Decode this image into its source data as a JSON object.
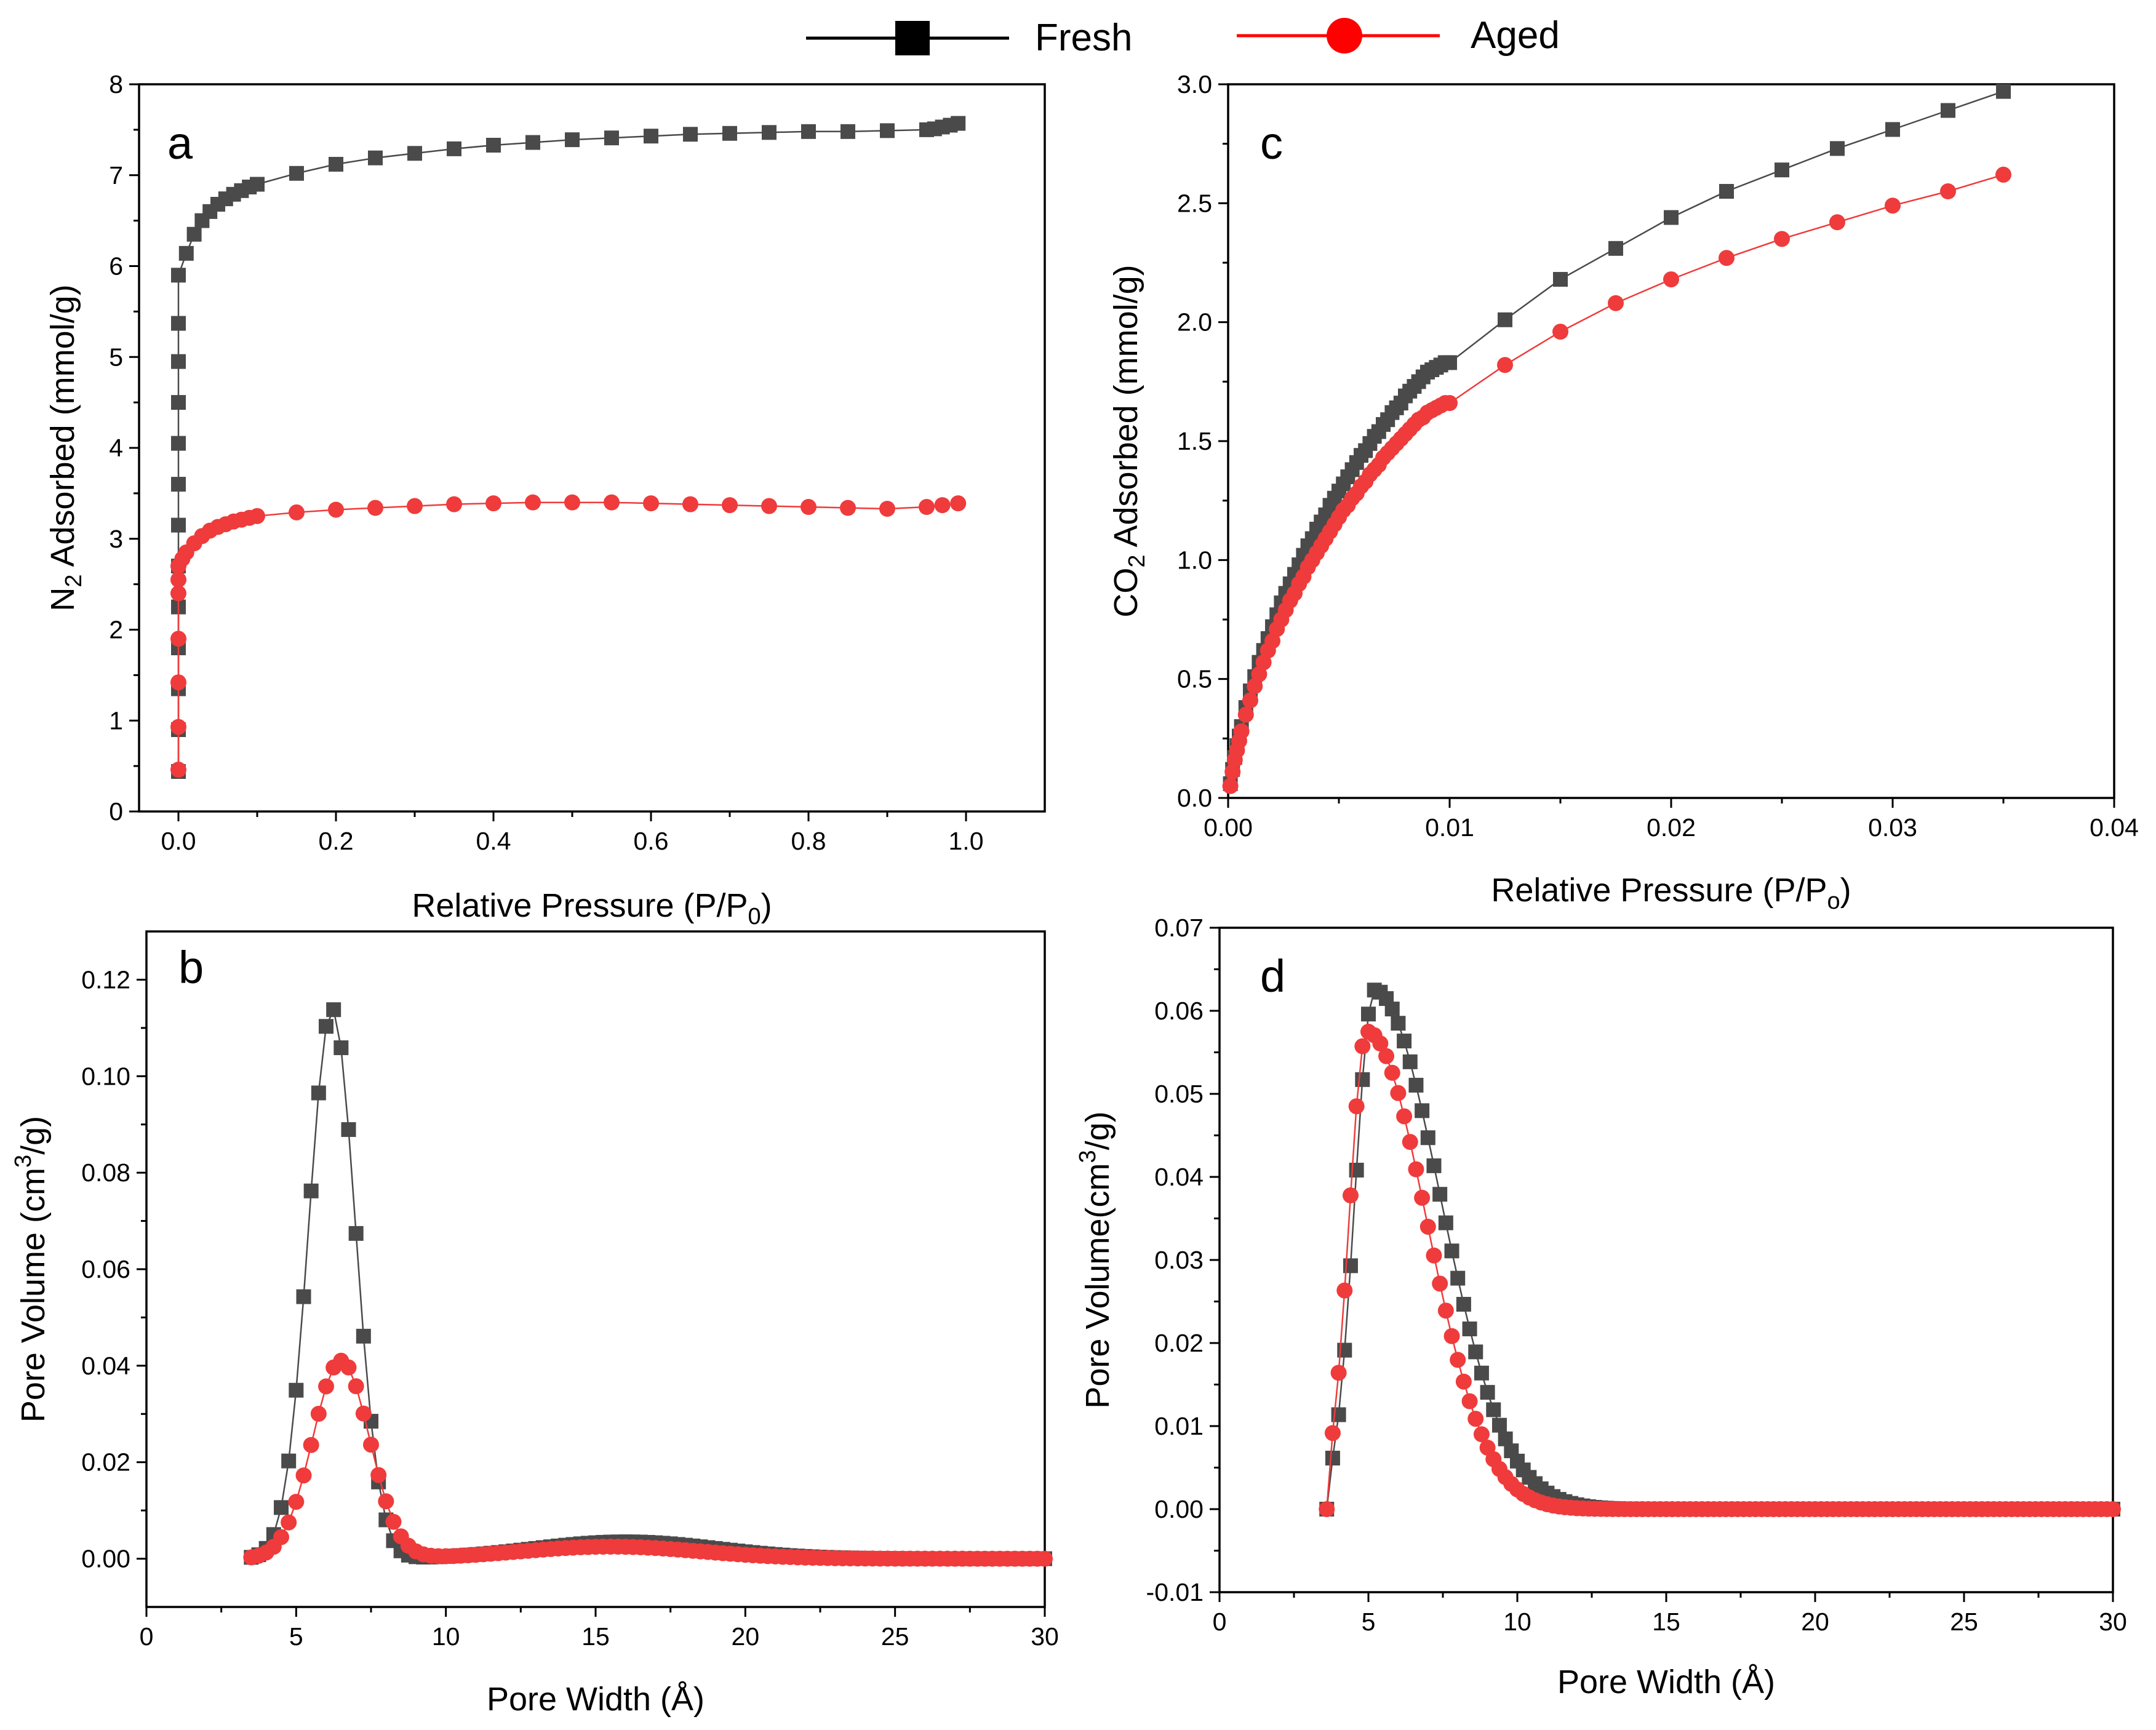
{
  "colors": {
    "fresh": "#4a4a4a",
    "aged": "#ef3b3b",
    "fresh_legend": "#000000",
    "aged_legend": "#ff0000"
  },
  "legend": {
    "fresh_label": "Fresh",
    "aged_label": "Aged"
  },
  "chart_data": [
    {
      "id": "a",
      "panel_label": "a",
      "type": "scatter",
      "xlabel": "Relative Pressure (P/P0)",
      "xlabel_main": "Relative Pressure (P/P",
      "xlabel_sub": "0",
      "xlabel_end": ")",
      "ylabel": "N2 Adsorbed (mmol/g)",
      "ylabel_pre": "N",
      "ylabel_sub": "2",
      "ylabel_post": " Adsorbed (mmol/g)",
      "xlim": [
        -0.05,
        1.1
      ],
      "ylim": [
        0,
        8
      ],
      "xticks": [
        0.0,
        0.2,
        0.4,
        0.6,
        0.8,
        1.0
      ],
      "xtick_labels": [
        "0.0",
        "0.2",
        "0.4",
        "0.6",
        "0.8",
        "1.0"
      ],
      "yticks": [
        0,
        1,
        2,
        3,
        4,
        5,
        6,
        7,
        8
      ],
      "ytick_labels": [
        "0",
        "1",
        "2",
        "3",
        "4",
        "5",
        "6",
        "7",
        "8"
      ],
      "series": [
        {
          "name": "Fresh",
          "marker": "square",
          "x": [
            0.0,
            0.0,
            0.0,
            0.0,
            0.0,
            0.0,
            0.0,
            0.0,
            0.0,
            0.0,
            0.0,
            0.0,
            0.0,
            0.01,
            0.02,
            0.03,
            0.04,
            0.05,
            0.06,
            0.07,
            0.08,
            0.09,
            0.1,
            0.15,
            0.2,
            0.25,
            0.3,
            0.35,
            0.4,
            0.45,
            0.5,
            0.55,
            0.6,
            0.65,
            0.7,
            0.75,
            0.8,
            0.85,
            0.9,
            0.95,
            0.96,
            0.97,
            0.98,
            0.99
          ],
          "y": [
            0.44,
            0.9,
            1.35,
            1.8,
            2.25,
            2.7,
            3.15,
            3.6,
            4.05,
            4.5,
            4.95,
            5.37,
            5.9,
            6.14,
            6.35,
            6.5,
            6.6,
            6.68,
            6.74,
            6.79,
            6.83,
            6.87,
            6.9,
            7.02,
            7.12,
            7.19,
            7.24,
            7.29,
            7.33,
            7.36,
            7.39,
            7.41,
            7.43,
            7.45,
            7.46,
            7.47,
            7.48,
            7.48,
            7.49,
            7.5,
            7.51,
            7.53,
            7.55,
            7.57
          ]
        },
        {
          "name": "Aged",
          "marker": "circle",
          "x": [
            0.0,
            0.0,
            0.0,
            0.0,
            0.0,
            0.0,
            0.0,
            0.005,
            0.01,
            0.02,
            0.03,
            0.04,
            0.05,
            0.06,
            0.07,
            0.08,
            0.09,
            0.1,
            0.15,
            0.2,
            0.25,
            0.3,
            0.35,
            0.4,
            0.45,
            0.5,
            0.55,
            0.6,
            0.65,
            0.7,
            0.75,
            0.8,
            0.85,
            0.9,
            0.95,
            0.97,
            0.99
          ],
          "y": [
            0.46,
            0.93,
            1.42,
            1.9,
            2.4,
            2.55,
            2.7,
            2.78,
            2.85,
            2.95,
            3.03,
            3.09,
            3.13,
            3.16,
            3.19,
            3.21,
            3.23,
            3.25,
            3.29,
            3.32,
            3.34,
            3.36,
            3.38,
            3.39,
            3.4,
            3.4,
            3.4,
            3.39,
            3.38,
            3.37,
            3.36,
            3.35,
            3.34,
            3.33,
            3.35,
            3.37,
            3.39
          ]
        }
      ]
    },
    {
      "id": "b",
      "panel_label": "b",
      "type": "scatter",
      "xlabel": "Pore Width (Å)",
      "xlabel_main": "Pore Width (Å)",
      "ylabel": "Pore Volume (cm3/g)",
      "ylabel_pre": "Pore Volume (cm",
      "ylabel_sup": "3",
      "ylabel_post": "/g)",
      "xlim": [
        0,
        30
      ],
      "ylim": [
        -0.01,
        0.13
      ],
      "xticks": [
        0,
        5,
        10,
        15,
        20,
        25,
        30
      ],
      "xtick_labels": [
        "0",
        "5",
        "10",
        "15",
        "20",
        "25",
        "30"
      ],
      "yticks": [
        0.0,
        0.02,
        0.04,
        0.06,
        0.08,
        0.1,
        0.12
      ],
      "ytick_labels": [
        "0.00",
        "0.02",
        "0.04",
        "0.06",
        "0.08",
        "0.10",
        "0.12"
      ],
      "series": [
        {
          "name": "Fresh",
          "marker": "square",
          "peaks": [
            {
              "center": 6.2,
              "height": 0.114,
              "sigma": 0.78
            },
            {
              "center": 16.0,
              "height": 0.0035,
              "sigma": 3.0
            }
          ],
          "x_start": 3.5,
          "x_end": 30,
          "x_step": 0.25
        },
        {
          "name": "Aged",
          "marker": "circle",
          "peaks": [
            {
              "center": 6.5,
              "height": 0.041,
              "sigma": 0.95
            },
            {
              "center": 15.5,
              "height": 0.0025,
              "sigma": 3.0
            }
          ],
          "x_start": 3.5,
          "x_end": 30,
          "x_step": 0.25
        }
      ]
    },
    {
      "id": "c",
      "panel_label": "c",
      "type": "scatter",
      "xlabel": "Relative Pressure (P/Po)",
      "xlabel_main": "Relative Pressure (P/P",
      "xlabel_sub": "o",
      "xlabel_end": ")",
      "ylabel": "CO2 Adsorbed (mmol/g)",
      "ylabel_pre": "CO",
      "ylabel_sub": "2",
      "ylabel_post": " Adsorbed (mmol/g)",
      "xlim": [
        0,
        0.04
      ],
      "ylim": [
        0,
        3.0
      ],
      "xticks": [
        0.0,
        0.01,
        0.02,
        0.03,
        0.04
      ],
      "xtick_labels": [
        "0.00",
        "0.01",
        "0.02",
        "0.03",
        "0.04"
      ],
      "yticks": [
        0.0,
        0.5,
        1.0,
        1.5,
        2.0,
        2.5,
        3.0
      ],
      "ytick_labels": [
        "0.0",
        "0.5",
        "1.0",
        "1.5",
        "2.0",
        "2.5",
        "3.0"
      ],
      "series": [
        {
          "name": "Fresh",
          "marker": "square",
          "x": [
            0.0001,
            0.0002,
            0.0003,
            0.0004,
            0.0005,
            0.0006,
            0.0008,
            0.001,
            0.0012,
            0.0014,
            0.0016,
            0.0018,
            0.002,
            0.0022,
            0.0024,
            0.0026,
            0.0028,
            0.003,
            0.0032,
            0.0034,
            0.0036,
            0.0038,
            0.004,
            0.0042,
            0.0044,
            0.0046,
            0.0048,
            0.005,
            0.0052,
            0.0054,
            0.0056,
            0.0058,
            0.006,
            0.0062,
            0.0064,
            0.0066,
            0.0068,
            0.007,
            0.0072,
            0.0074,
            0.0076,
            0.0078,
            0.008,
            0.0082,
            0.0084,
            0.0086,
            0.0088,
            0.009,
            0.0092,
            0.0094,
            0.0096,
            0.0098,
            0.01,
            0.0125,
            0.015,
            0.0175,
            0.02,
            0.0225,
            0.025,
            0.0275,
            0.03,
            0.0325,
            0.035
          ],
          "y": [
            0.06,
            0.12,
            0.17,
            0.22,
            0.26,
            0.3,
            0.38,
            0.45,
            0.51,
            0.57,
            0.62,
            0.67,
            0.72,
            0.77,
            0.82,
            0.86,
            0.9,
            0.94,
            0.98,
            1.02,
            1.06,
            1.09,
            1.13,
            1.16,
            1.19,
            1.23,
            1.26,
            1.29,
            1.32,
            1.35,
            1.38,
            1.41,
            1.44,
            1.46,
            1.49,
            1.52,
            1.54,
            1.57,
            1.59,
            1.62,
            1.64,
            1.66,
            1.69,
            1.71,
            1.73,
            1.75,
            1.77,
            1.79,
            1.8,
            1.81,
            1.82,
            1.83,
            1.83,
            2.01,
            2.18,
            2.31,
            2.44,
            2.55,
            2.64,
            2.73,
            2.81,
            2.89,
            2.97
          ]
        },
        {
          "name": "Aged",
          "marker": "circle",
          "x": [
            0.0001,
            0.0002,
            0.0003,
            0.0004,
            0.0005,
            0.0006,
            0.0008,
            0.001,
            0.0012,
            0.0014,
            0.0016,
            0.0018,
            0.002,
            0.0022,
            0.0024,
            0.0026,
            0.0028,
            0.003,
            0.0032,
            0.0034,
            0.0036,
            0.0038,
            0.004,
            0.0042,
            0.0044,
            0.0046,
            0.0048,
            0.005,
            0.0052,
            0.0054,
            0.0056,
            0.0058,
            0.006,
            0.0062,
            0.0064,
            0.0066,
            0.0068,
            0.007,
            0.0072,
            0.0074,
            0.0076,
            0.0078,
            0.008,
            0.0082,
            0.0084,
            0.0086,
            0.0088,
            0.009,
            0.0092,
            0.0094,
            0.0096,
            0.0098,
            0.01,
            0.0125,
            0.015,
            0.0175,
            0.02,
            0.0225,
            0.025,
            0.0275,
            0.03,
            0.0325,
            0.035
          ],
          "y": [
            0.05,
            0.11,
            0.16,
            0.2,
            0.24,
            0.28,
            0.35,
            0.41,
            0.47,
            0.52,
            0.57,
            0.62,
            0.66,
            0.71,
            0.75,
            0.79,
            0.83,
            0.86,
            0.9,
            0.93,
            0.97,
            1.0,
            1.03,
            1.06,
            1.09,
            1.12,
            1.15,
            1.18,
            1.21,
            1.23,
            1.26,
            1.28,
            1.31,
            1.33,
            1.36,
            1.38,
            1.4,
            1.43,
            1.45,
            1.47,
            1.49,
            1.51,
            1.53,
            1.55,
            1.57,
            1.59,
            1.6,
            1.62,
            1.63,
            1.64,
            1.65,
            1.66,
            1.66,
            1.82,
            1.96,
            2.08,
            2.18,
            2.27,
            2.35,
            2.42,
            2.49,
            2.55,
            2.62
          ]
        }
      ]
    },
    {
      "id": "d",
      "panel_label": "d",
      "type": "scatter",
      "xlabel": "Pore Width (Å)",
      "xlabel_main": "Pore Width (Å)",
      "ylabel": "Pore Volume(cm3/g)",
      "ylabel_pre": "Pore Volume(cm",
      "ylabel_sup": "3",
      "ylabel_post": "/g)",
      "xlim": [
        0,
        30
      ],
      "ylim": [
        -0.01,
        0.07
      ],
      "xticks": [
        0,
        5,
        10,
        15,
        20,
        25,
        30
      ],
      "xtick_labels": [
        "0",
        "5",
        "10",
        "15",
        "20",
        "25",
        "30"
      ],
      "yticks": [
        -0.01,
        0.0,
        0.01,
        0.02,
        0.03,
        0.04,
        0.05,
        0.06,
        0.07
      ],
      "ytick_labels": [
        "-0.01",
        "0.00",
        "0.01",
        "0.02",
        "0.03",
        "0.04",
        "0.05",
        "0.06",
        "0.07"
      ],
      "series": [
        {
          "name": "Fresh",
          "marker": "square",
          "skewed_peak": {
            "start": 3.6,
            "center": 5.2,
            "height": 0.0625,
            "sigma_left": 0.65,
            "sigma_right": 2.2
          },
          "x_start": 3.6,
          "x_end": 30,
          "x_step": 0.2
        },
        {
          "name": "Aged",
          "marker": "circle",
          "skewed_peak": {
            "start": 3.6,
            "center": 4.95,
            "height": 0.0575,
            "sigma_left": 0.6,
            "sigma_right": 2.0
          },
          "x_start": 3.6,
          "x_end": 30,
          "x_step": 0.2
        }
      ]
    }
  ]
}
